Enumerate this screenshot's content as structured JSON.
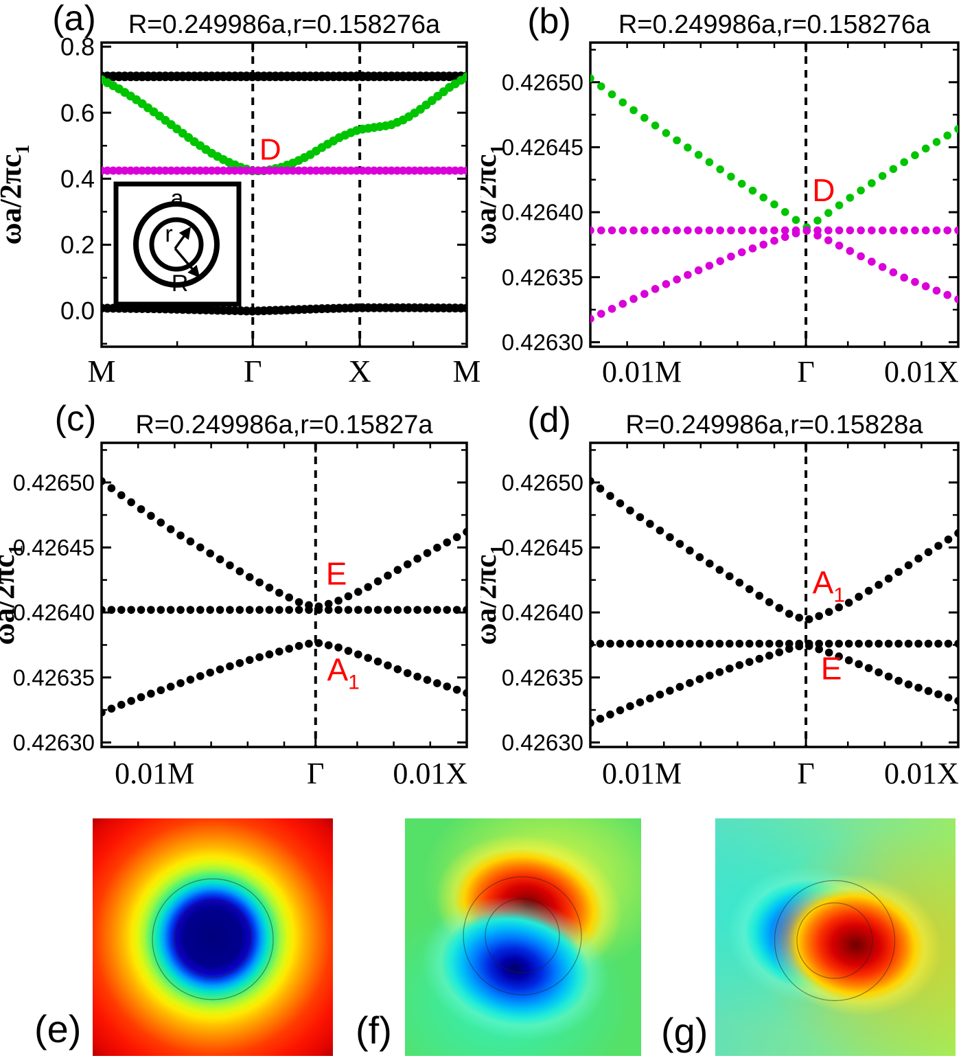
{
  "colors": {
    "band_green": "#00c400",
    "band_magenta": "#d900d9",
    "band_black": "#000000",
    "annotation_red": "#ff0000",
    "axis": "#000000",
    "jet_low": "#00007c",
    "jet_high": "#b00000"
  },
  "field_maps": [
    {
      "id": "e",
      "label": "(e)",
      "colormap": "jet",
      "center_color": "#00007c",
      "corner_color": "#b00000",
      "rings": [
        "r",
        "R"
      ]
    },
    {
      "id": "f",
      "label": "(f)",
      "colormap": "jet",
      "lobes": [
        "red-top",
        "blue-bottom"
      ],
      "background_color": "#55e068",
      "rings": [
        "r",
        "R"
      ]
    },
    {
      "id": "g",
      "label": "(g)",
      "colormap": "jet",
      "lobes": [
        "blue-left",
        "red-right"
      ],
      "background_color": "#7ae49c",
      "rings": [
        "r",
        "R"
      ]
    }
  ],
  "chart_data": [
    {
      "id": "a",
      "type": "scatter",
      "panel_label": "(a)",
      "title": "R=0.249986a,r=0.158276a",
      "ylabel": {
        "text": "ωa/2πc",
        "sub": "1"
      },
      "x_axis": {
        "labels": [
          {
            "text": "M",
            "pos": 0
          },
          {
            "text": "Γ",
            "pos": 0.414
          },
          {
            "text": "X",
            "pos": 0.707
          },
          {
            "text": "M",
            "pos": 1
          }
        ],
        "major": [
          0,
          0.414,
          0.707,
          1
        ],
        "minor": [
          0.207,
          0.5605,
          0.8535
        ],
        "dashed": [
          0.414,
          0.707
        ]
      },
      "y_axis": {
        "range": [
          -0.109,
          0.8125
        ],
        "ticks": [
          {
            "label": "0.0",
            "value": 0.0
          },
          {
            "label": "0.2",
            "value": 0.2
          },
          {
            "label": "0.4",
            "value": 0.4
          },
          {
            "label": "0.6",
            "value": 0.6
          },
          {
            "label": "0.8",
            "value": 0.8
          }
        ],
        "minor": [
          -0.1,
          0.1,
          0.3,
          0.5,
          0.7
        ]
      },
      "annotations": [
        {
          "text": "D",
          "x": 0.462,
          "y": 0.49,
          "color": "#ff0000"
        }
      ],
      "dot_step": 8.5,
      "series": [
        {
          "name": "upper-flat-black-band",
          "color": "#000000",
          "dot_radius": 7,
          "points": [
            [
              0,
              0.71
            ],
            [
              1,
              0.71
            ]
          ]
        },
        {
          "name": "green-dispersive-band",
          "color": "#00c400",
          "dot_radius": 6.5,
          "points": [
            [
              0,
              0.7
            ],
            [
              0.05,
              0.671
            ],
            [
              0.1,
              0.636
            ],
            [
              0.15,
              0.597
            ],
            [
              0.2,
              0.556
            ],
            [
              0.25,
              0.515
            ],
            [
              0.3,
              0.478
            ],
            [
              0.34,
              0.454
            ],
            [
              0.38,
              0.435
            ],
            [
              0.41,
              0.4245
            ],
            [
              0.414,
              0.4235
            ],
            [
              0.45,
              0.4245
            ],
            [
              0.49,
              0.434
            ],
            [
              0.53,
              0.45
            ],
            [
              0.57,
              0.472
            ],
            [
              0.61,
              0.499
            ],
            [
              0.65,
              0.524
            ],
            [
              0.69,
              0.543
            ],
            [
              0.707,
              0.549
            ],
            [
              0.75,
              0.556
            ],
            [
              0.79,
              0.562
            ],
            [
              0.83,
              0.58
            ],
            [
              0.87,
              0.608
            ],
            [
              0.91,
              0.641
            ],
            [
              0.95,
              0.675
            ],
            [
              1,
              0.709
            ]
          ]
        },
        {
          "name": "magenta-flat-band",
          "color": "#d900d9",
          "dot_radius": 6,
          "points": [
            [
              0,
              0.4245
            ],
            [
              1,
              0.4245
            ]
          ]
        },
        {
          "name": "acoustic-black-band",
          "color": "#000000",
          "dot_radius": 6.5,
          "points": [
            [
              0,
              0.008
            ],
            [
              0.15,
              0.006
            ],
            [
              0.3,
              0.002
            ],
            [
              0.414,
              -0.001
            ],
            [
              0.5,
              0.002
            ],
            [
              0.6,
              0.006
            ],
            [
              0.707,
              0.009
            ],
            [
              0.85,
              0.009
            ],
            [
              1,
              0.008
            ]
          ]
        }
      ],
      "inset": {
        "cell_label": "a",
        "inner_radius_label": "r",
        "outer_radius_label": "R"
      }
    },
    {
      "id": "b",
      "type": "scatter",
      "panel_label": "(b)",
      "title": "R=0.249986a,r=0.158276a",
      "ylabel": {
        "text": "ωa/2πc",
        "sub": "1"
      },
      "x_axis": {
        "labels": [
          {
            "text": "0.01M",
            "pos": 0.14
          },
          {
            "text": "Γ",
            "pos": 0.586
          },
          {
            "text": "0.01X",
            "pos": 0.9
          }
        ],
        "major": [
          0,
          0.586,
          1
        ],
        "minor": [
          0.1,
          0.2,
          0.3,
          0.4,
          0.5,
          0.7,
          0.8,
          0.9
        ],
        "dashed": [
          0.586
        ]
      },
      "y_axis": {
        "range": [
          0.4262965,
          0.4265305
        ],
        "ticks": [
          {
            "label": "0.42630",
            "value": 0.4263
          },
          {
            "label": "0.42635",
            "value": 0.42635
          },
          {
            "label": "0.42640",
            "value": 0.4264
          },
          {
            "label": "0.42645",
            "value": 0.42645
          },
          {
            "label": "0.42650",
            "value": 0.4265
          }
        ],
        "minor": [
          0.426325,
          0.426375,
          0.426425,
          0.426475,
          0.426525
        ]
      },
      "annotations": [
        {
          "text": "D",
          "x": 0.634,
          "y": 0.426417,
          "color": "#ff0000"
        }
      ],
      "dot_step": 16,
      "series": [
        {
          "name": "green-upper-cone",
          "color": "#00c400",
          "dot_radius": 5.8,
          "points": [
            [
              0,
              0.426503
            ],
            [
              0.1,
              0.426482
            ],
            [
              0.2,
              0.426462
            ],
            [
              0.3,
              0.426443
            ],
            [
              0.4,
              0.426424
            ],
            [
              0.5,
              0.426406
            ],
            [
              0.55,
              0.426396
            ],
            [
              0.586,
              0.426388
            ],
            [
              0.62,
              0.426394
            ],
            [
              0.7,
              0.42641
            ],
            [
              0.8,
              0.426429
            ],
            [
              0.9,
              0.426447
            ],
            [
              1,
              0.426464
            ]
          ]
        },
        {
          "name": "magenta-flat-band",
          "color": "#d900d9",
          "dot_radius": 5.8,
          "points": [
            [
              0,
              0.426386
            ],
            [
              1,
              0.426386
            ]
          ]
        },
        {
          "name": "magenta-lower-cone",
          "color": "#d900d9",
          "dot_radius": 5.8,
          "points": [
            [
              0,
              0.426318
            ],
            [
              0.1,
              0.426331
            ],
            [
              0.2,
              0.426344
            ],
            [
              0.3,
              0.426356
            ],
            [
              0.4,
              0.426368
            ],
            [
              0.5,
              0.426378
            ],
            [
              0.55,
              0.426383
            ],
            [
              0.586,
              0.426386
            ],
            [
              0.65,
              0.426378
            ],
            [
              0.75,
              0.426364
            ],
            [
              0.85,
              0.42635
            ],
            [
              1,
              0.426333
            ]
          ]
        }
      ]
    },
    {
      "id": "c",
      "type": "scatter",
      "panel_label": "(c)",
      "title": "R=0.249986a,r=0.15827a",
      "ylabel": {
        "text": "ωa/2πc",
        "sub": "1"
      },
      "x_axis": {
        "labels": [
          {
            "text": "0.01M",
            "pos": 0.145
          },
          {
            "text": "Γ",
            "pos": 0.586
          },
          {
            "text": "0.01X",
            "pos": 0.9
          }
        ],
        "major": [
          0,
          0.586,
          1
        ],
        "minor": [
          0.1,
          0.2,
          0.3,
          0.4,
          0.5,
          0.7,
          0.8,
          0.9
        ],
        "dashed": [
          0.586
        ]
      },
      "y_axis": {
        "range": [
          0.4262965,
          0.4265305
        ],
        "ticks": [
          {
            "label": "0.42630",
            "value": 0.4263
          },
          {
            "label": "0.42635",
            "value": 0.42635
          },
          {
            "label": "0.42640",
            "value": 0.4264
          },
          {
            "label": "0.42645",
            "value": 0.42645
          },
          {
            "label": "0.42650",
            "value": 0.4265
          }
        ],
        "minor": [
          0.426325,
          0.426375,
          0.426425,
          0.426475,
          0.426525
        ]
      },
      "annotations": [
        {
          "text": "E",
          "x": 0.643,
          "y": 0.42643,
          "color": "#ff0000"
        },
        {
          "text": "A",
          "sub": "1",
          "x": 0.662,
          "y": 0.426356,
          "color": "#ff0000"
        }
      ],
      "dot_step": 14.5,
      "series": [
        {
          "name": "upper-band",
          "color": "#000000",
          "dot_radius": 5.8,
          "points": [
            [
              0,
              0.426501
            ],
            [
              0.1,
              0.426481
            ],
            [
              0.2,
              0.426462
            ],
            [
              0.3,
              0.426445
            ],
            [
              0.4,
              0.426428
            ],
            [
              0.48,
              0.426416
            ],
            [
              0.54,
              0.426408
            ],
            [
              0.586,
              0.426404
            ],
            [
              0.64,
              0.426408
            ],
            [
              0.72,
              0.426418
            ],
            [
              0.8,
              0.426431
            ],
            [
              0.9,
              0.426447
            ],
            [
              1,
              0.426462
            ]
          ]
        },
        {
          "name": "flat-E-band",
          "color": "#000000",
          "dot_radius": 5.8,
          "points": [
            [
              0,
              0.426402
            ],
            [
              1,
              0.426402
            ]
          ]
        },
        {
          "name": "lower-A1-band",
          "color": "#000000",
          "dot_radius": 5.8,
          "points": [
            [
              0,
              0.426323
            ],
            [
              0.1,
              0.426334
            ],
            [
              0.2,
              0.426344
            ],
            [
              0.3,
              0.426354
            ],
            [
              0.4,
              0.426363
            ],
            [
              0.5,
              0.426371
            ],
            [
              0.55,
              0.426375
            ],
            [
              0.586,
              0.426377
            ],
            [
              0.65,
              0.426373
            ],
            [
              0.75,
              0.426363
            ],
            [
              0.85,
              0.426352
            ],
            [
              1,
              0.426338
            ]
          ]
        }
      ]
    },
    {
      "id": "d",
      "type": "scatter",
      "panel_label": "(d)",
      "title": "R=0.249986a,r=0.15828a",
      "ylabel": {
        "text": "ωa/2πc",
        "sub": "1"
      },
      "x_axis": {
        "labels": [
          {
            "text": "0.01M",
            "pos": 0.14
          },
          {
            "text": "Γ",
            "pos": 0.586
          },
          {
            "text": "0.01X",
            "pos": 0.9
          }
        ],
        "major": [
          0,
          0.586,
          1
        ],
        "minor": [
          0.1,
          0.2,
          0.3,
          0.4,
          0.5,
          0.7,
          0.8,
          0.9
        ],
        "dashed": [
          0.586
        ]
      },
      "y_axis": {
        "range": [
          0.4262965,
          0.4265305
        ],
        "ticks": [
          {
            "label": "0.42630",
            "value": 0.4263
          },
          {
            "label": "0.42635",
            "value": 0.42635
          },
          {
            "label": "0.42640",
            "value": 0.4264
          },
          {
            "label": "0.42645",
            "value": 0.42645
          },
          {
            "label": "0.42650",
            "value": 0.4265
          }
        ],
        "minor": [
          0.426325,
          0.426375,
          0.426425,
          0.426475,
          0.426525
        ]
      },
      "annotations": [
        {
          "text": "A",
          "sub": "1",
          "x": 0.648,
          "y": 0.426423,
          "color": "#ff0000"
        },
        {
          "text": "E",
          "x": 0.655,
          "y": 0.426357,
          "color": "#ff0000"
        }
      ],
      "dot_step": 14.5,
      "series": [
        {
          "name": "upper-A1-band",
          "color": "#000000",
          "dot_radius": 5.8,
          "points": [
            [
              0,
              0.426501
            ],
            [
              0.1,
              0.42648
            ],
            [
              0.2,
              0.426461
            ],
            [
              0.3,
              0.426442
            ],
            [
              0.4,
              0.426424
            ],
            [
              0.48,
              0.426409
            ],
            [
              0.54,
              0.426399
            ],
            [
              0.586,
              0.426394
            ],
            [
              0.63,
              0.426398
            ],
            [
              0.7,
              0.426407
            ],
            [
              0.8,
              0.426424
            ],
            [
              0.9,
              0.426443
            ],
            [
              1,
              0.426461
            ]
          ]
        },
        {
          "name": "flat-band",
          "color": "#000000",
          "dot_radius": 5.8,
          "points": [
            [
              0,
              0.426376
            ],
            [
              1,
              0.426376
            ]
          ]
        },
        {
          "name": "lower-E-band",
          "color": "#000000",
          "dot_radius": 5.8,
          "points": [
            [
              0,
              0.426315
            ],
            [
              0.1,
              0.426327
            ],
            [
              0.2,
              0.426338
            ],
            [
              0.3,
              0.426349
            ],
            [
              0.4,
              0.426359
            ],
            [
              0.5,
              0.426368
            ],
            [
              0.55,
              0.426373
            ],
            [
              0.586,
              0.426375
            ],
            [
              0.65,
              0.426369
            ],
            [
              0.75,
              0.426358
            ],
            [
              0.85,
              0.426346
            ],
            [
              1,
              0.426332
            ]
          ]
        }
      ]
    }
  ]
}
